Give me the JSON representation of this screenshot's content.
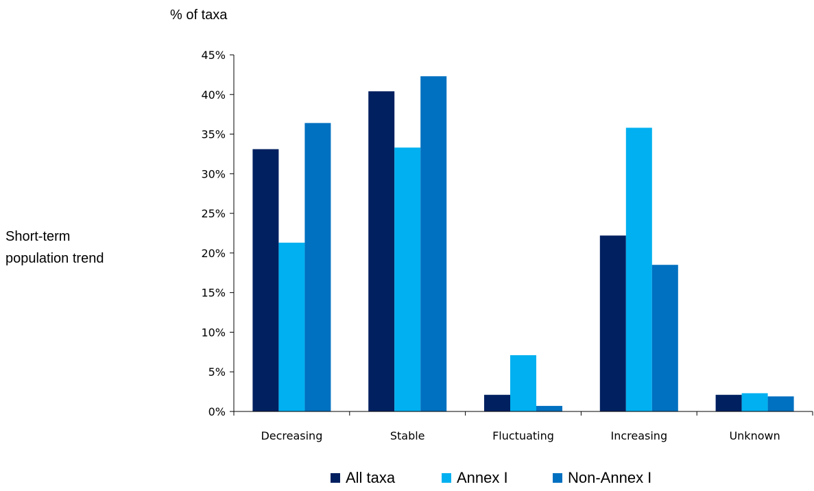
{
  "chart_data": {
    "type": "bar",
    "ylabel": "% of taxa",
    "side_label": [
      "Short-term",
      "population trend"
    ],
    "categories": [
      "Decreasing",
      "Stable",
      "Fluctuating",
      "Increasing",
      "Unknown"
    ],
    "series": [
      {
        "name": "All taxa",
        "color": "#002060",
        "values": [
          33.1,
          40.4,
          2.1,
          22.2,
          2.1
        ]
      },
      {
        "name": "Annex I",
        "color": "#00B0F0",
        "values": [
          21.3,
          33.3,
          7.1,
          35.8,
          2.3
        ]
      },
      {
        "name": "Non-Annex I",
        "color": "#0070C0",
        "values": [
          36.4,
          42.3,
          0.7,
          18.5,
          1.9
        ]
      }
    ],
    "yticks": [
      "0%",
      "5%",
      "10%",
      "15%",
      "20%",
      "25%",
      "30%",
      "35%",
      "40%",
      "45%"
    ],
    "ylim": [
      0,
      45
    ],
    "grid": false,
    "legend_position": "bottom"
  }
}
